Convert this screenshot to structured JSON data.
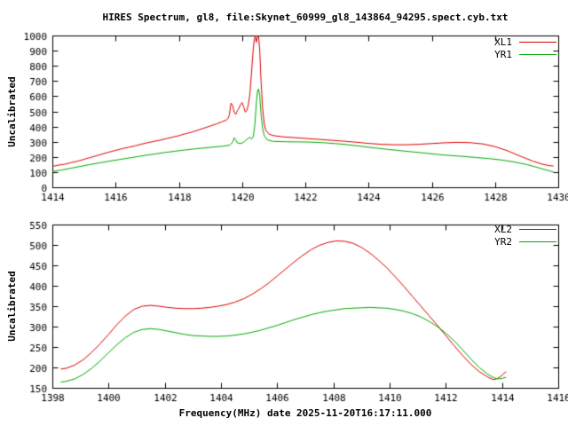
{
  "title": "HIRES Spectrum, gl8, file:Skynet_60999_gl8_143864_94295.spect.cyb.txt",
  "xlabel": "Frequency(MHz) date 2025-11-20T16:17:11.000",
  "colors": {
    "background": "#ffffff",
    "axis": "#000000",
    "text": "#000000",
    "red": "#dd0000",
    "green": "#00aa00"
  },
  "chart_data": [
    {
      "type": "line",
      "ylabel": "Uncalibrated",
      "xlim": [
        1414,
        1430
      ],
      "ylim": [
        0,
        1000
      ],
      "xticks": [
        1414,
        1416,
        1418,
        1420,
        1422,
        1424,
        1426,
        1428,
        1430
      ],
      "yticks": [
        0,
        100,
        200,
        300,
        400,
        500,
        600,
        700,
        800,
        900,
        1000
      ],
      "legend_position": "top-right",
      "grid": false,
      "series": [
        {
          "name": "XL1",
          "color": "#dd0000",
          "points": [
            [
              1414.0,
              138
            ],
            [
              1414.2,
              146
            ],
            [
              1414.4,
              152
            ],
            [
              1414.6,
              163
            ],
            [
              1414.8,
              172
            ],
            [
              1415.0,
              184
            ],
            [
              1415.2,
              196
            ],
            [
              1415.4,
              208
            ],
            [
              1415.6,
              220
            ],
            [
              1415.8,
              232
            ],
            [
              1416.0,
              243
            ],
            [
              1416.2,
              254
            ],
            [
              1416.4,
              263
            ],
            [
              1416.6,
              272
            ],
            [
              1416.8,
              283
            ],
            [
              1417.0,
              293
            ],
            [
              1417.2,
              302
            ],
            [
              1417.4,
              310
            ],
            [
              1417.6,
              320
            ],
            [
              1417.8,
              330
            ],
            [
              1418.0,
              340
            ],
            [
              1418.2,
              352
            ],
            [
              1418.4,
              363
            ],
            [
              1418.6,
              376
            ],
            [
              1418.8,
              390
            ],
            [
              1419.0,
              404
            ],
            [
              1419.2,
              418
            ],
            [
              1419.35,
              430
            ],
            [
              1419.5,
              443
            ],
            [
              1419.55,
              452
            ],
            [
              1419.6,
              478
            ],
            [
              1419.65,
              555
            ],
            [
              1419.7,
              540
            ],
            [
              1419.75,
              495
            ],
            [
              1419.8,
              480
            ],
            [
              1419.85,
              505
            ],
            [
              1419.9,
              520
            ],
            [
              1419.95,
              545
            ],
            [
              1420.0,
              558
            ],
            [
              1420.05,
              530
            ],
            [
              1420.1,
              495
            ],
            [
              1420.15,
              505
            ],
            [
              1420.2,
              545
            ],
            [
              1420.25,
              620
            ],
            [
              1420.3,
              760
            ],
            [
              1420.35,
              900
            ],
            [
              1420.38,
              965
            ],
            [
              1420.42,
              1000
            ],
            [
              1420.45,
              955
            ],
            [
              1420.48,
              985
            ],
            [
              1420.52,
              1000
            ],
            [
              1420.56,
              900
            ],
            [
              1420.6,
              700
            ],
            [
              1420.65,
              520
            ],
            [
              1420.7,
              420
            ],
            [
              1420.75,
              375
            ],
            [
              1420.85,
              350
            ],
            [
              1421.0,
              340
            ],
            [
              1421.3,
              332
            ],
            [
              1421.6,
              328
            ],
            [
              1422.0,
              322
            ],
            [
              1422.4,
              316
            ],
            [
              1422.8,
              310
            ],
            [
              1423.2,
              304
            ],
            [
              1423.6,
              297
            ],
            [
              1424.0,
              289
            ],
            [
              1424.4,
              283
            ],
            [
              1424.8,
              280
            ],
            [
              1425.2,
              280
            ],
            [
              1425.6,
              283
            ],
            [
              1426.0,
              288
            ],
            [
              1426.4,
              293
            ],
            [
              1426.8,
              296
            ],
            [
              1427.2,
              294
            ],
            [
              1427.6,
              286
            ],
            [
              1428.0,
              268
            ],
            [
              1428.4,
              240
            ],
            [
              1428.8,
              205
            ],
            [
              1429.2,
              172
            ],
            [
              1429.5,
              152
            ],
            [
              1429.7,
              143
            ],
            [
              1429.85,
              140
            ]
          ]
        },
        {
          "name": "YR1",
          "color": "#00aa00",
          "points": [
            [
              1414.0,
              104
            ],
            [
              1414.3,
              114
            ],
            [
              1414.6,
              126
            ],
            [
              1414.9,
              138
            ],
            [
              1415.2,
              150
            ],
            [
              1415.5,
              161
            ],
            [
              1415.8,
              172
            ],
            [
              1416.1,
              182
            ],
            [
              1416.4,
              192
            ],
            [
              1416.7,
              202
            ],
            [
              1417.0,
              212
            ],
            [
              1417.3,
              221
            ],
            [
              1417.6,
              230
            ],
            [
              1417.9,
              238
            ],
            [
              1418.2,
              246
            ],
            [
              1418.5,
              253
            ],
            [
              1418.8,
              259
            ],
            [
              1419.1,
              265
            ],
            [
              1419.4,
              271
            ],
            [
              1419.6,
              277
            ],
            [
              1419.7,
              296
            ],
            [
              1419.75,
              326
            ],
            [
              1419.8,
              312
            ],
            [
              1419.85,
              292
            ],
            [
              1419.95,
              288
            ],
            [
              1420.05,
              296
            ],
            [
              1420.15,
              316
            ],
            [
              1420.25,
              330
            ],
            [
              1420.3,
              318
            ],
            [
              1420.35,
              332
            ],
            [
              1420.4,
              400
            ],
            [
              1420.44,
              520
            ],
            [
              1420.48,
              625
            ],
            [
              1420.52,
              648
            ],
            [
              1420.56,
              600
            ],
            [
              1420.6,
              480
            ],
            [
              1420.65,
              390
            ],
            [
              1420.7,
              340
            ],
            [
              1420.8,
              312
            ],
            [
              1421.0,
              302
            ],
            [
              1421.4,
              300
            ],
            [
              1421.8,
              299
            ],
            [
              1422.2,
              297
            ],
            [
              1422.6,
              293
            ],
            [
              1423.0,
              287
            ],
            [
              1423.4,
              279
            ],
            [
              1423.8,
              269
            ],
            [
              1424.2,
              259
            ],
            [
              1424.6,
              250
            ],
            [
              1425.0,
              241
            ],
            [
              1425.4,
              233
            ],
            [
              1425.8,
              225
            ],
            [
              1426.2,
              216
            ],
            [
              1426.6,
              209
            ],
            [
              1427.0,
              203
            ],
            [
              1427.4,
              196
            ],
            [
              1427.8,
              189
            ],
            [
              1428.2,
              180
            ],
            [
              1428.6,
              167
            ],
            [
              1429.0,
              150
            ],
            [
              1429.3,
              133
            ],
            [
              1429.6,
              115
            ],
            [
              1429.85,
              101
            ]
          ]
        }
      ]
    },
    {
      "type": "line",
      "ylabel": "Uncalibrated",
      "xlim": [
        1398,
        1416
      ],
      "ylim": [
        150,
        550
      ],
      "xticks": [
        1398,
        1400,
        1402,
        1404,
        1406,
        1408,
        1410,
        1412,
        1414,
        1416
      ],
      "yticks": [
        150,
        200,
        250,
        300,
        350,
        400,
        450,
        500,
        550
      ],
      "legend_position": "top-right",
      "grid": false,
      "series": [
        {
          "name": "XL2",
          "color": "#dd0000",
          "points": [
            [
              1398.3,
              196
            ],
            [
              1398.5,
              198
            ],
            [
              1398.8,
              206
            ],
            [
              1399.1,
              219
            ],
            [
              1399.4,
              237
            ],
            [
              1399.7,
              258
            ],
            [
              1400.0,
              281
            ],
            [
              1400.3,
              305
            ],
            [
              1400.6,
              326
            ],
            [
              1400.9,
              342
            ],
            [
              1401.2,
              350
            ],
            [
              1401.5,
              352
            ],
            [
              1401.8,
              350
            ],
            [
              1402.1,
              347
            ],
            [
              1402.4,
              345
            ],
            [
              1402.7,
              344
            ],
            [
              1403.0,
              344
            ],
            [
              1403.3,
              345
            ],
            [
              1403.6,
              347
            ],
            [
              1403.9,
              350
            ],
            [
              1404.2,
              354
            ],
            [
              1404.5,
              360
            ],
            [
              1404.8,
              368
            ],
            [
              1405.1,
              379
            ],
            [
              1405.4,
              392
            ],
            [
              1405.7,
              407
            ],
            [
              1406.0,
              424
            ],
            [
              1406.3,
              441
            ],
            [
              1406.6,
              458
            ],
            [
              1406.9,
              474
            ],
            [
              1407.2,
              488
            ],
            [
              1407.5,
              499
            ],
            [
              1407.8,
              506
            ],
            [
              1408.1,
              510
            ],
            [
              1408.4,
              509
            ],
            [
              1408.7,
              504
            ],
            [
              1409.0,
              494
            ],
            [
              1409.3,
              480
            ],
            [
              1409.6,
              463
            ],
            [
              1409.9,
              444
            ],
            [
              1410.2,
              422
            ],
            [
              1410.5,
              399
            ],
            [
              1410.8,
              375
            ],
            [
              1411.1,
              351
            ],
            [
              1411.4,
              327
            ],
            [
              1411.7,
              303
            ],
            [
              1412.0,
              278
            ],
            [
              1412.3,
              253
            ],
            [
              1412.6,
              229
            ],
            [
              1412.9,
              207
            ],
            [
              1413.2,
              189
            ],
            [
              1413.5,
              176
            ],
            [
              1413.7,
              170
            ],
            [
              1413.85,
              173
            ],
            [
              1414.0,
              181
            ],
            [
              1414.15,
              190
            ]
          ]
        },
        {
          "name": "YR2",
          "color": "#00aa00",
          "points": [
            [
              1398.3,
              164
            ],
            [
              1398.5,
              166
            ],
            [
              1398.8,
              172
            ],
            [
              1399.1,
              183
            ],
            [
              1399.4,
              198
            ],
            [
              1399.7,
              216
            ],
            [
              1400.0,
              236
            ],
            [
              1400.3,
              256
            ],
            [
              1400.6,
              273
            ],
            [
              1400.9,
              286
            ],
            [
              1401.2,
              293
            ],
            [
              1401.5,
              295
            ],
            [
              1401.8,
              293
            ],
            [
              1402.1,
              289
            ],
            [
              1402.4,
              285
            ],
            [
              1402.7,
              281
            ],
            [
              1403.0,
              278
            ],
            [
              1403.3,
              277
            ],
            [
              1403.6,
              276
            ],
            [
              1403.9,
              276
            ],
            [
              1404.2,
              277
            ],
            [
              1404.5,
              279
            ],
            [
              1404.8,
              282
            ],
            [
              1405.1,
              286
            ],
            [
              1405.4,
              291
            ],
            [
              1405.7,
              297
            ],
            [
              1406.0,
              303
            ],
            [
              1406.3,
              310
            ],
            [
              1406.6,
              317
            ],
            [
              1406.9,
              323
            ],
            [
              1407.2,
              329
            ],
            [
              1407.5,
              334
            ],
            [
              1407.8,
              338
            ],
            [
              1408.1,
              341
            ],
            [
              1408.4,
              344
            ],
            [
              1408.7,
              345
            ],
            [
              1409.0,
              346
            ],
            [
              1409.3,
              347
            ],
            [
              1409.6,
              346
            ],
            [
              1409.9,
              345
            ],
            [
              1410.2,
              342
            ],
            [
              1410.5,
              338
            ],
            [
              1410.8,
              332
            ],
            [
              1411.1,
              324
            ],
            [
              1411.4,
              313
            ],
            [
              1411.7,
              300
            ],
            [
              1412.0,
              284
            ],
            [
              1412.3,
              265
            ],
            [
              1412.6,
              243
            ],
            [
              1412.9,
              220
            ],
            [
              1413.2,
              199
            ],
            [
              1413.5,
              183
            ],
            [
              1413.7,
              175
            ],
            [
              1413.85,
              172
            ],
            [
              1414.0,
              173
            ],
            [
              1414.15,
              176
            ]
          ]
        }
      ]
    }
  ]
}
